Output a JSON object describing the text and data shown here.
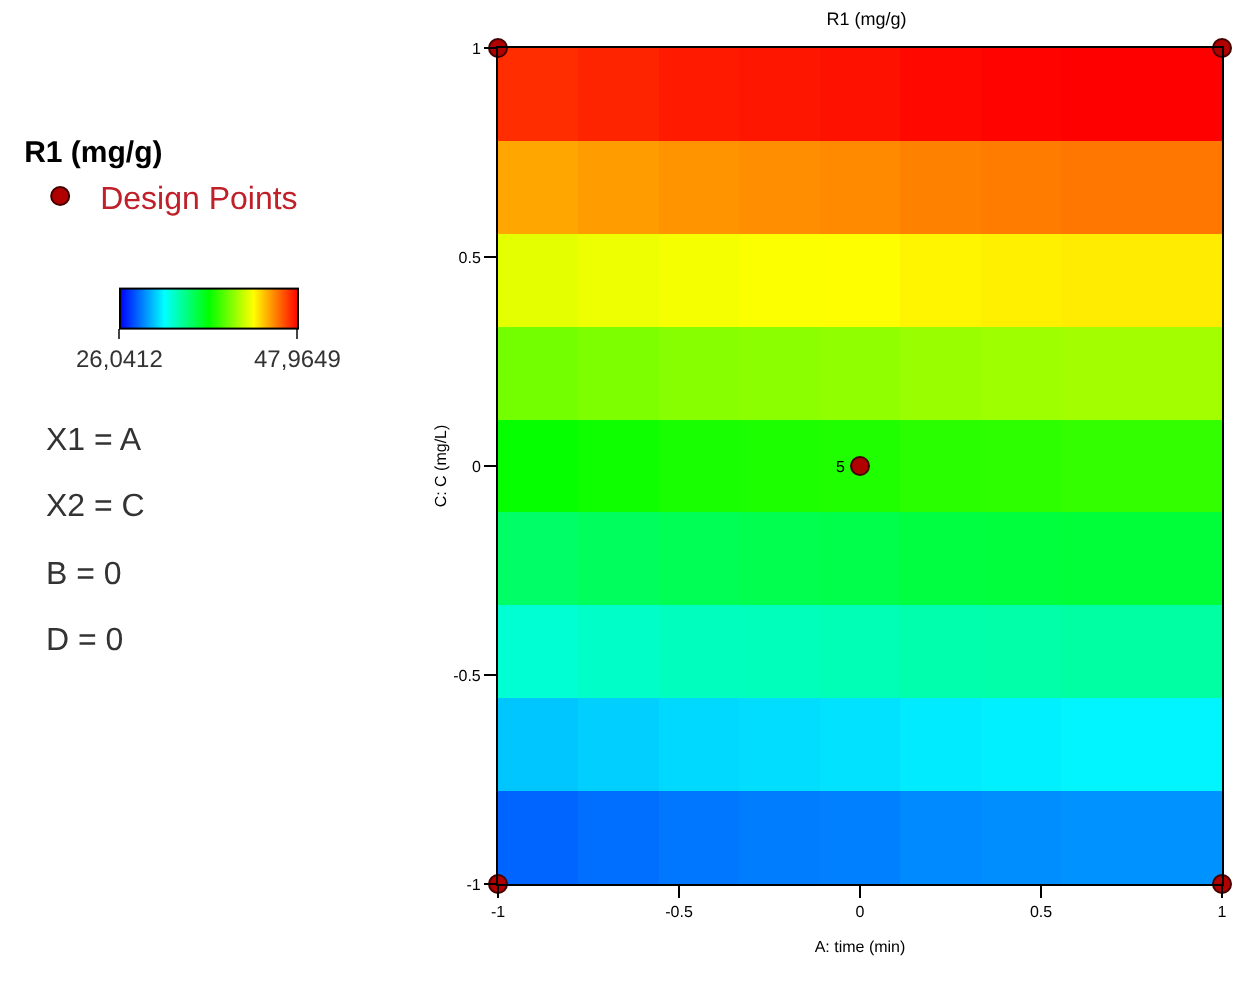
{
  "chart_data": {
    "type": "heatmap",
    "title": "R1 (mg/g)",
    "xlabel": "A: time (min)",
    "ylabel": "C: C (mg/L)",
    "legend_title": "R1 (mg/g)",
    "x": [
      -0.889,
      -0.667,
      -0.444,
      -0.222,
      0,
      0.222,
      0.444,
      0.667,
      0.889
    ],
    "y": [
      0.889,
      0.667,
      0.444,
      0.222,
      0,
      -0.222,
      -0.444,
      -0.667,
      -0.889
    ],
    "cells": [
      [
        47.0,
        47.2,
        47.4,
        47.5,
        47.6,
        47.8,
        47.9,
        48.0,
        48.0
      ],
      [
        44.4,
        44.6,
        44.8,
        44.9,
        45.0,
        45.2,
        45.3,
        45.4,
        45.4
      ],
      [
        41.9,
        42.1,
        42.3,
        42.4,
        42.5,
        42.7,
        42.8,
        42.9,
        42.9
      ],
      [
        39.5,
        39.7,
        39.9,
        40.0,
        40.1,
        40.3,
        40.4,
        40.5,
        40.5
      ],
      [
        37.1,
        37.3,
        37.5,
        37.6,
        37.7,
        37.9,
        38.0,
        38.1,
        38.1
      ],
      [
        34.8,
        35.0,
        35.2,
        35.3,
        35.4,
        35.6,
        35.7,
        35.8,
        35.8
      ],
      [
        32.5,
        32.7,
        32.9,
        33.0,
        33.1,
        33.3,
        33.4,
        33.5,
        33.5
      ],
      [
        30.3,
        30.5,
        30.7,
        30.8,
        30.9,
        31.1,
        31.2,
        31.3,
        31.3
      ],
      [
        28.2,
        28.4,
        28.6,
        28.7,
        28.8,
        29.0,
        29.1,
        29.2,
        29.2
      ]
    ],
    "clim": [
      26.0412,
      47.9649
    ],
    "cticks": [
      {
        "value": 26.0412,
        "label": "26,0412"
      },
      {
        "value": 47.9649,
        "label": "47,9649"
      }
    ],
    "xlim": [
      -1,
      1
    ],
    "xticks": [
      -1,
      -0.5,
      0,
      0.5,
      1
    ],
    "ylim": [
      -1,
      1
    ],
    "yticks": [
      -1,
      -0.5,
      0,
      0.5,
      1
    ],
    "series": [
      {
        "type": "scatter",
        "name": "Design Points",
        "color": "#b00000",
        "x": [
          -1,
          1,
          1,
          -1,
          0
        ],
        "values": [
          1,
          1,
          -1,
          -1,
          0
        ]
      }
    ],
    "marker": "circle",
    "annotations": [
      "X1 = A",
      "X2 = C",
      "B = 0",
      "D = 0",
      {
        "text": "5",
        "x": 0,
        "y": 0
      }
    ],
    "legend": "top left"
  }
}
